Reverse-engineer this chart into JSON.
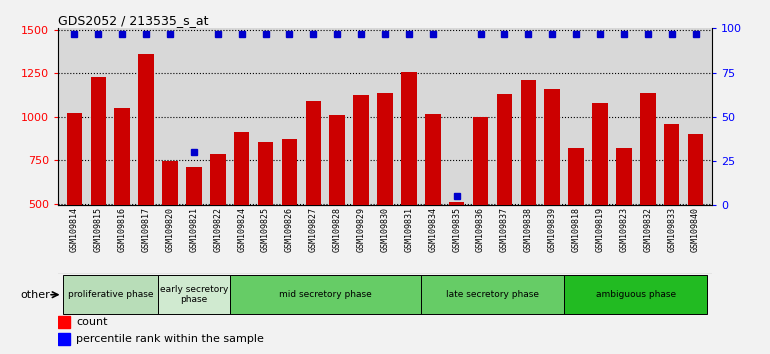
{
  "title": "GDS2052 / 213535_s_at",
  "samples": [
    "GSM109814",
    "GSM109815",
    "GSM109816",
    "GSM109817",
    "GSM109820",
    "GSM109821",
    "GSM109822",
    "GSM109824",
    "GSM109825",
    "GSM109826",
    "GSM109827",
    "GSM109828",
    "GSM109829",
    "GSM109830",
    "GSM109831",
    "GSM109834",
    "GSM109835",
    "GSM109836",
    "GSM109837",
    "GSM109838",
    "GSM109839",
    "GSM109818",
    "GSM109819",
    "GSM109823",
    "GSM109832",
    "GSM109833",
    "GSM109840"
  ],
  "counts": [
    1020,
    1230,
    1050,
    1360,
    745,
    710,
    785,
    915,
    855,
    870,
    1090,
    1010,
    1125,
    1140,
    1260,
    1015,
    510,
    1000,
    1130,
    1215,
    1160,
    820,
    1080,
    820,
    1135,
    960,
    900
  ],
  "percentile_ranks": [
    97,
    97,
    97,
    97,
    97,
    30,
    97,
    97,
    97,
    97,
    97,
    97,
    97,
    97,
    97,
    97,
    5,
    97,
    97,
    97,
    97,
    97,
    97,
    97,
    97,
    97,
    97
  ],
  "phases": [
    {
      "label": "proliferative phase",
      "start": 0,
      "end": 4,
      "color": "#b8ddb8"
    },
    {
      "label": "early secretory\nphase",
      "start": 4,
      "end": 7,
      "color": "#d0ead0"
    },
    {
      "label": "mid secretory phase",
      "start": 7,
      "end": 15,
      "color": "#66cc66"
    },
    {
      "label": "late secretory phase",
      "start": 15,
      "end": 21,
      "color": "#66cc66"
    },
    {
      "label": "ambiguous phase",
      "start": 21,
      "end": 27,
      "color": "#22bb22"
    }
  ],
  "bar_color": "#cc0000",
  "dot_color": "#0000cc",
  "ylim_left": [
    490,
    1510
  ],
  "ylim_right": [
    0,
    100
  ],
  "yticks_left": [
    500,
    750,
    1000,
    1250,
    1500
  ],
  "yticks_right": [
    0,
    25,
    50,
    75,
    100
  ],
  "bg_color": "#d8d8d8",
  "fig_bg": "#f2f2f2"
}
